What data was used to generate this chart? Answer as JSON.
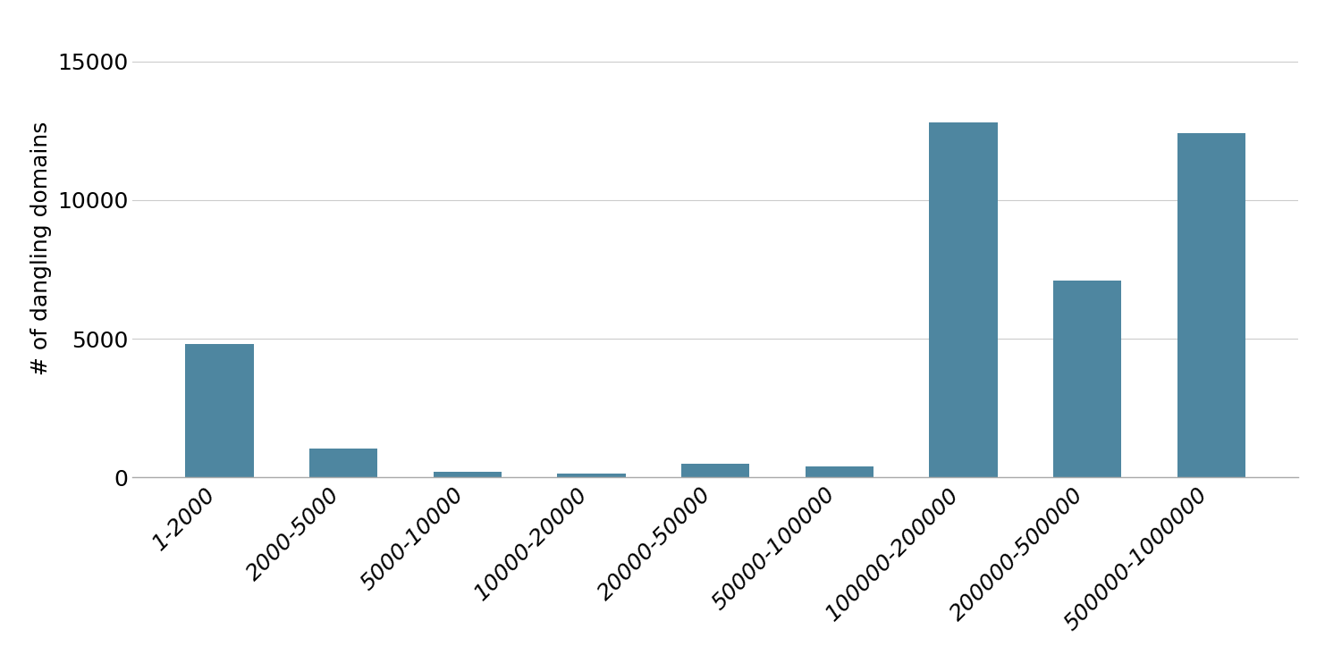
{
  "categories": [
    "1-2000",
    "2000-5000",
    "5000-10000",
    "10000-20000",
    "20000-50000",
    "50000-100000",
    "100000-200000",
    "200000-500000",
    "500000-1000000"
  ],
  "values": [
    4800,
    1050,
    200,
    150,
    500,
    400,
    12800,
    7100,
    12400
  ],
  "bar_color": "#4e86a0",
  "ylabel": "# of dangling domains",
  "ylim": [
    0,
    16500
  ],
  "yticks": [
    0,
    5000,
    10000,
    15000
  ],
  "background_color": "#ffffff",
  "grid_color": "#cccccc",
  "tick_label_fontsize": 18,
  "ylabel_fontsize": 18,
  "bar_width": 0.55
}
